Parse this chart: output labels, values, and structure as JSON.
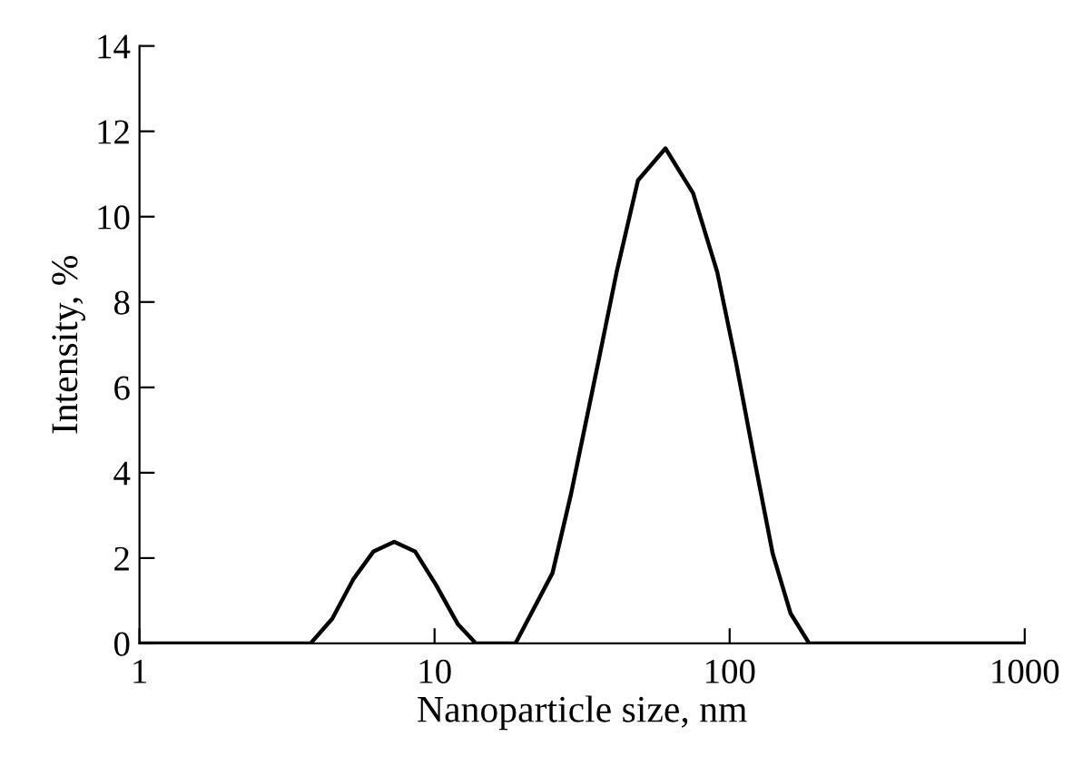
{
  "chart_data": {
    "type": "line",
    "xlabel": "Nanoparticle size, nm",
    "ylabel": "Intensity, %",
    "log": "x",
    "xlim": [
      1,
      1000
    ],
    "xticks": [
      1,
      10,
      100,
      1000
    ],
    "ylim": [
      0,
      14
    ],
    "yticks": [
      0,
      2,
      4,
      6,
      8,
      10,
      12,
      14
    ],
    "grid": false,
    "legend": false,
    "marker": "none",
    "line_style": "solid",
    "series": [
      {
        "color": "#000000",
        "x": [
          1,
          3.8,
          4.5,
          5.3,
          6.2,
          7.3,
          8.6,
          10.1,
          12,
          13.8,
          18.8,
          25.1,
          29,
          32.6,
          35.9,
          41.4,
          48.9,
          60.6,
          75.2,
          90.8,
          105,
          121,
          140,
          161,
          186,
          1000
        ],
        "values": [
          0,
          0,
          0.58,
          1.5,
          2.15,
          2.38,
          2.15,
          1.38,
          0.45,
          0,
          0,
          1.65,
          3.5,
          5.2,
          6.6,
          8.7,
          10.85,
          11.6,
          10.55,
          8.7,
          6.6,
          4.35,
          2.1,
          0.7,
          0,
          0
        ]
      }
    ]
  }
}
